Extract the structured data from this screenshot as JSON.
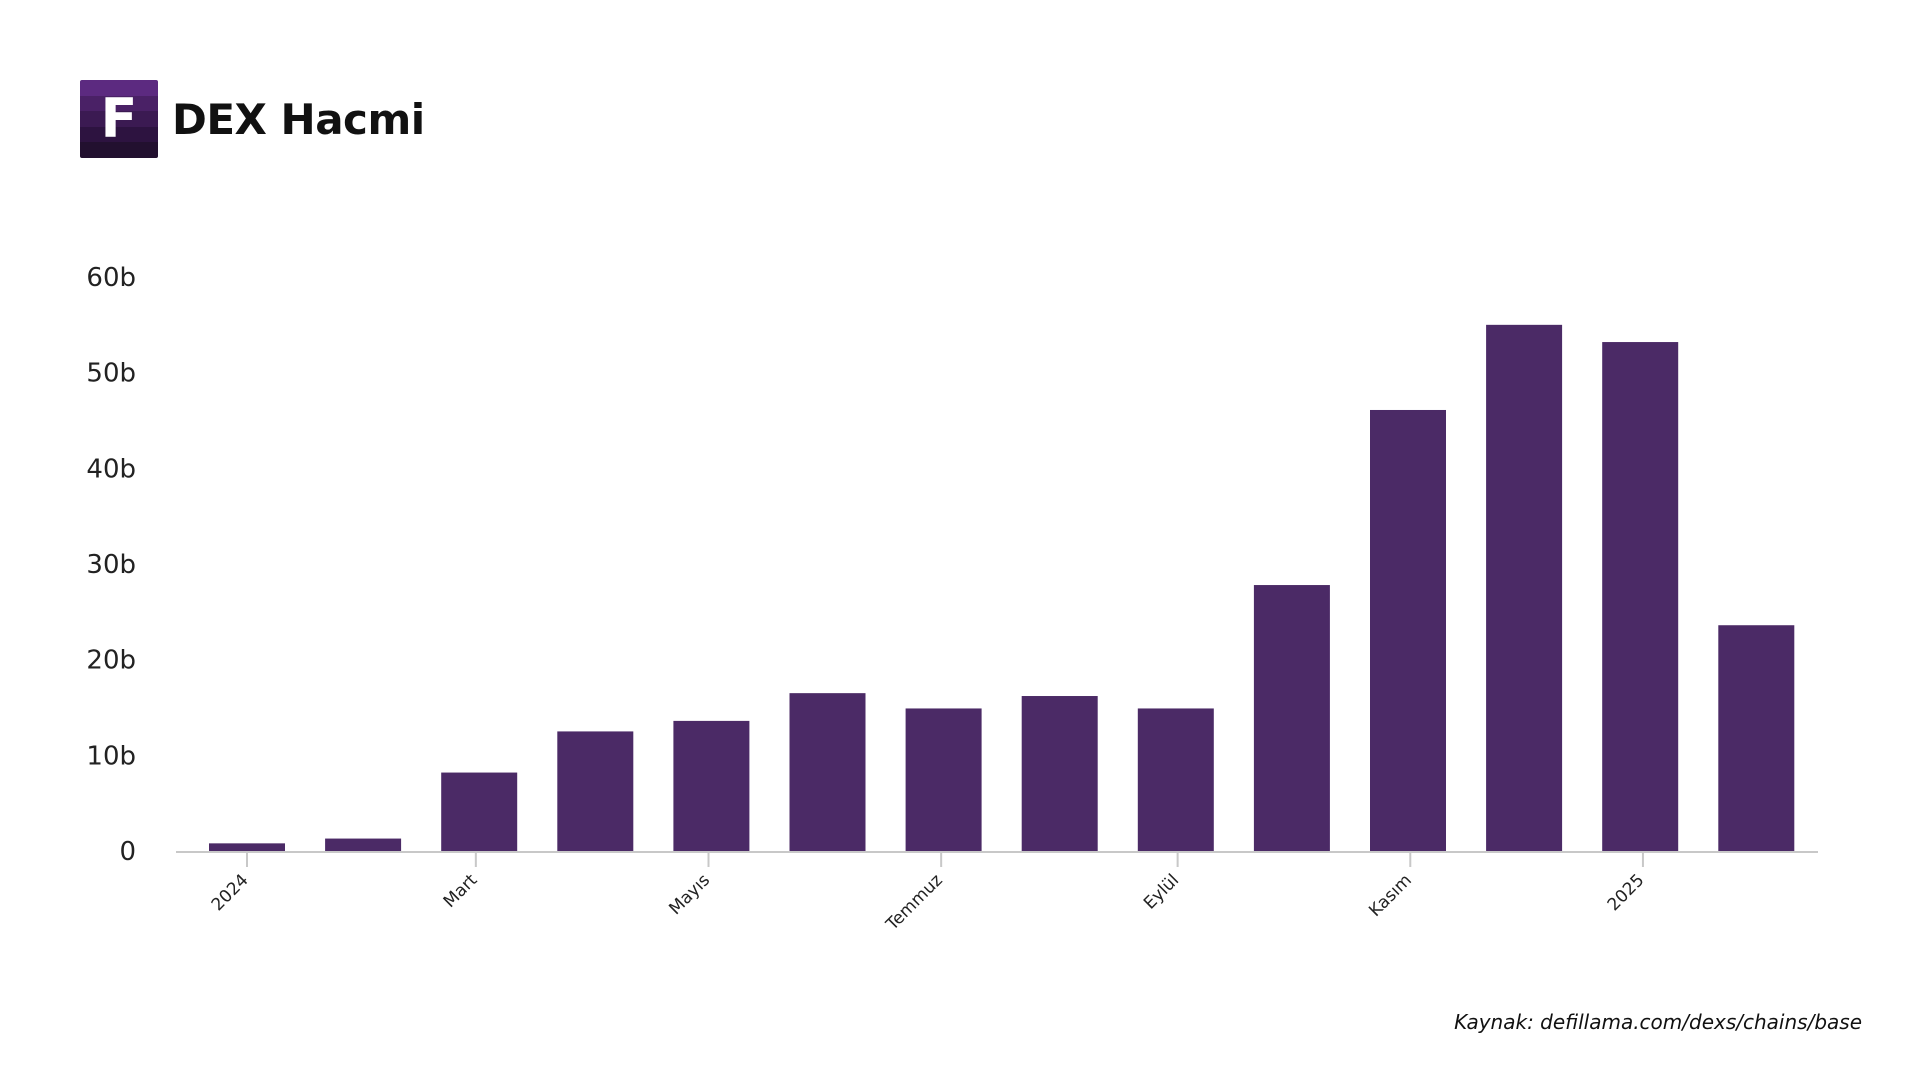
{
  "header": {
    "logo_letter": "F",
    "title": "DEX Hacmi"
  },
  "source": "Kaynak: defillama.com/dexs/chains/base",
  "colors": {
    "bar": "#4b2a66",
    "axis": "#c8c8c8",
    "logo_stripes": [
      "#5c2a80",
      "#4a2166",
      "#3b1a52",
      "#2d1340",
      "#22102f"
    ]
  },
  "chart_data": {
    "type": "bar",
    "title": "DEX Hacmi",
    "xlabel": "",
    "ylabel": "",
    "ylim": [
      0,
      60
    ],
    "yticks": [
      {
        "value": 0,
        "label": "0"
      },
      {
        "value": 10,
        "label": "10b"
      },
      {
        "value": 20,
        "label": "20b"
      },
      {
        "value": 30,
        "label": "30b"
      },
      {
        "value": 40,
        "label": "40b"
      },
      {
        "value": 50,
        "label": "50b"
      },
      {
        "value": 60,
        "label": "60b"
      }
    ],
    "categories": [
      "2024-01",
      "2024-02",
      "2024-03",
      "2024-04",
      "2024-05",
      "2024-06",
      "2024-07",
      "2024-08",
      "2024-09",
      "2024-10",
      "2024-11",
      "2024-12",
      "2025-01",
      "2025-02"
    ],
    "values": [
      0.8,
      1.3,
      8.2,
      12.5,
      13.6,
      16.5,
      14.9,
      16.2,
      14.9,
      27.8,
      46.1,
      55.0,
      53.2,
      23.6
    ],
    "xticks": [
      {
        "date": "2024-01-01",
        "label": "2024"
      },
      {
        "date": "2024-03-01",
        "label": "Mart"
      },
      {
        "date": "2024-05-01",
        "label": "Mayıs"
      },
      {
        "date": "2024-07-01",
        "label": "Temmuz"
      },
      {
        "date": "2024-09-01",
        "label": "Eylül"
      },
      {
        "date": "2024-11-01",
        "label": "Kasım"
      },
      {
        "date": "2025-01-01",
        "label": "2025"
      }
    ],
    "grid": false,
    "legend": "none"
  }
}
